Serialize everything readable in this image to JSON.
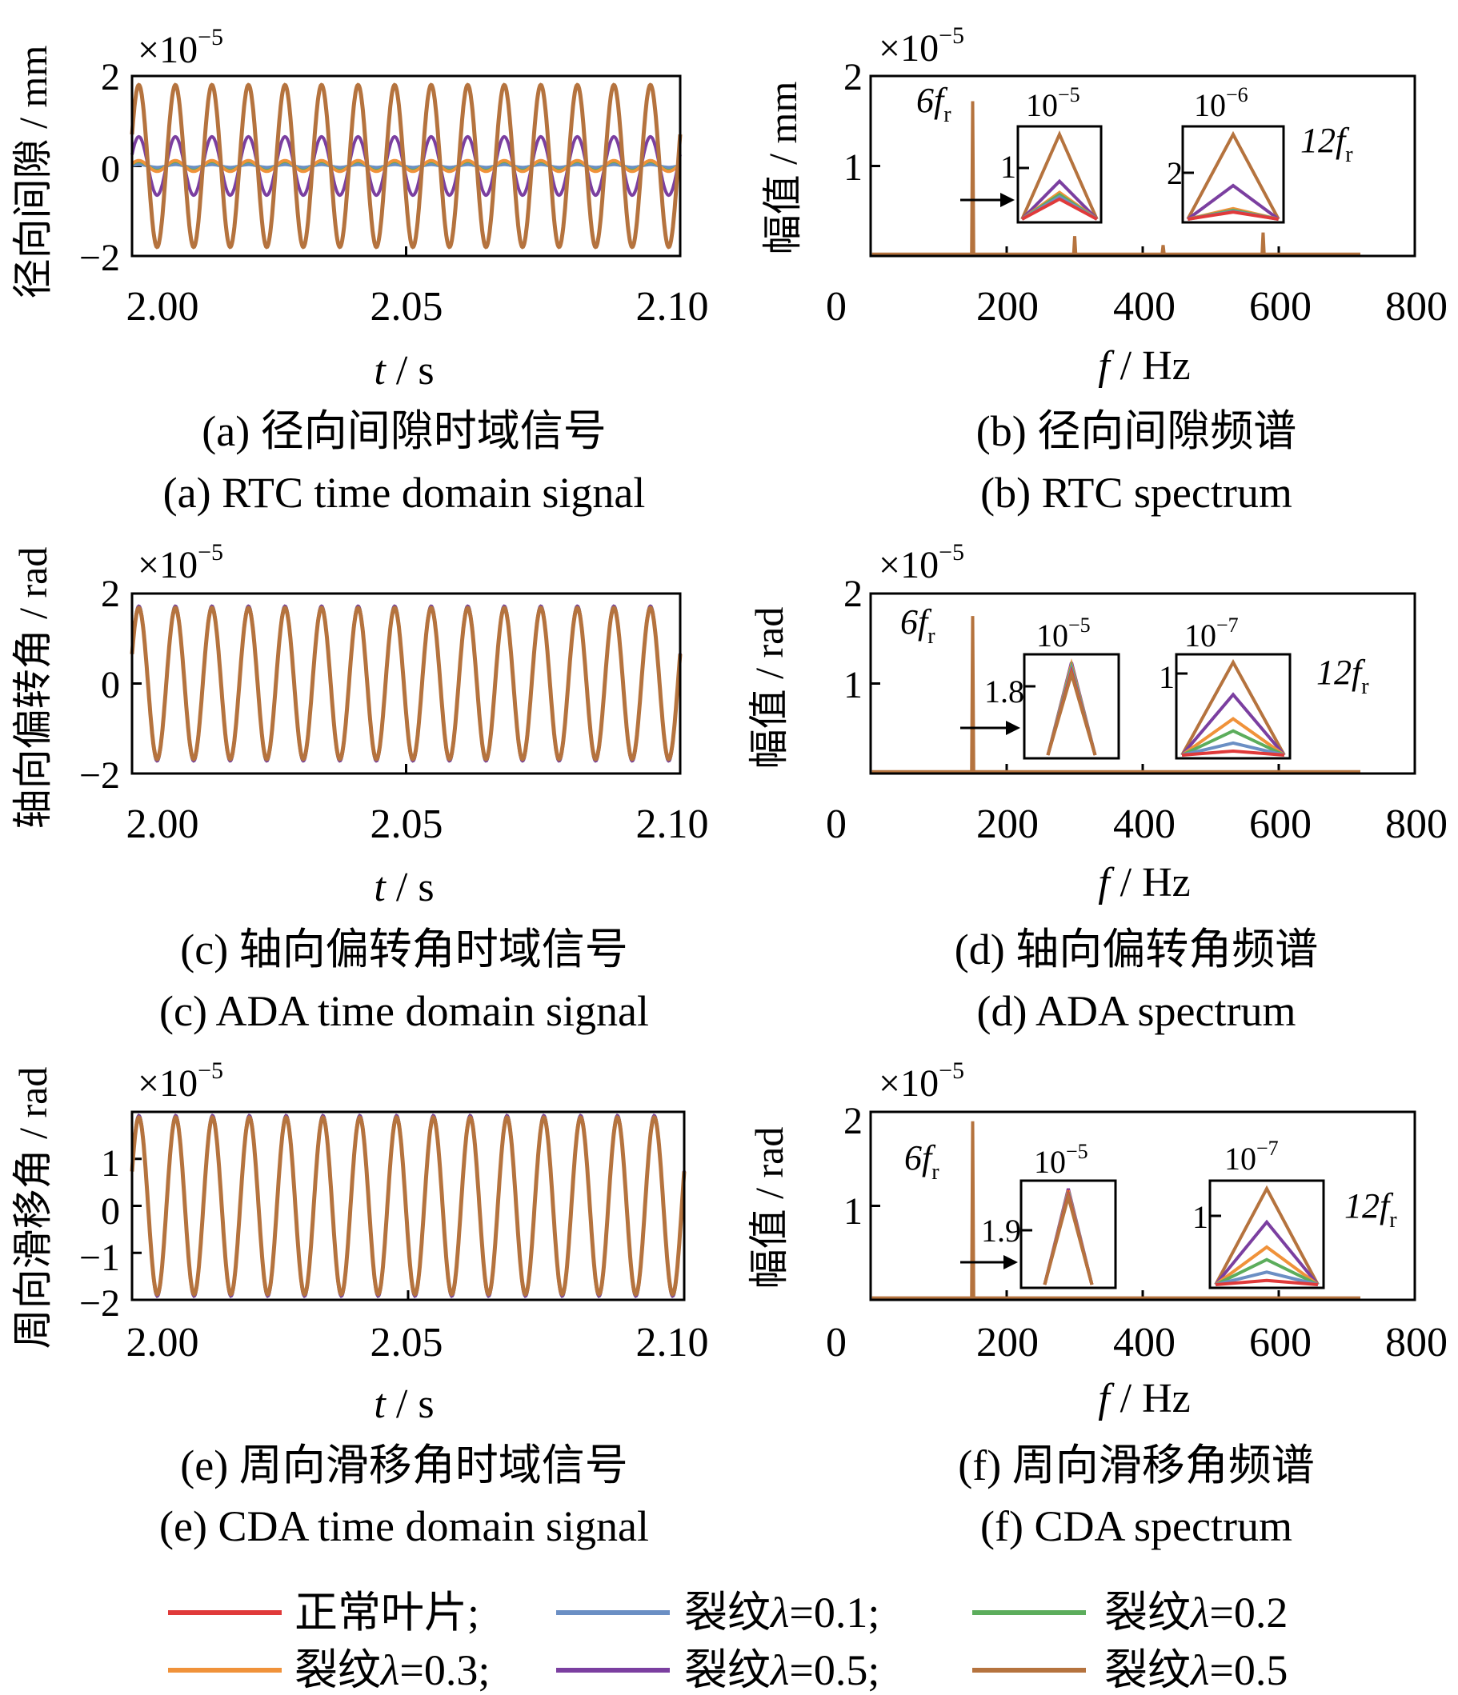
{
  "chart_data": [
    {
      "id": "a",
      "type": "line",
      "caption_cn": "(a)  径向间隙时域信号",
      "caption_en": "(a)  RTC time domain signal",
      "ylabel": "径向间隙 / mm",
      "xlabel_var": "t",
      "xlabel_unit": " / s",
      "scale_label": "×10",
      "scale_exp": "−5",
      "xlim": [
        2.0,
        2.1
      ],
      "ylim": [
        -2,
        2
      ],
      "xticks": [
        2.0,
        2.05,
        2.1
      ],
      "xtick_labels": [
        "2.00",
        "2.05",
        "2.10"
      ],
      "yticks": [
        -2,
        0,
        2
      ],
      "ytick_labels": [
        "−2",
        "0",
        "2"
      ],
      "frequency_hz": 150,
      "series_amplitude": [
        0.06,
        0.03,
        0.1,
        0.12,
        0.65,
        1.8
      ]
    },
    {
      "id": "b",
      "type": "line",
      "caption_cn": "(b)  径向间隙频谱",
      "caption_en": "(b)  RTC spectrum",
      "ylabel": "幅值 / mm",
      "xlabel_var": "f",
      "xlabel_unit": " / Hz",
      "scale_label": "×10",
      "scale_exp": "−5",
      "xlim": [
        0,
        800
      ],
      "ylim": [
        0,
        2
      ],
      "xticks": [
        0,
        200,
        400,
        600,
        800
      ],
      "xtick_labels": [
        "0",
        "200",
        "400",
        "600",
        "800"
      ],
      "yticks": [
        1,
        2
      ],
      "ytick_labels": [
        "1",
        "2"
      ],
      "peaks": [
        {
          "f": 150,
          "amp": 1.72
        },
        {
          "f": 300,
          "amp": 0.22
        },
        {
          "f": 430,
          "amp": 0.12
        },
        {
          "f": 577,
          "amp": 0.26
        }
      ],
      "peak_label_1": "6f",
      "peak_label_2": "12f",
      "peak_sub": "r",
      "inset1": {
        "scale": "10",
        "exp": "−5",
        "tick": "1",
        "series_peak": [
          0.45,
          0.5,
          0.55,
          0.6,
          0.85,
          1.9
        ]
      },
      "inset2": {
        "scale": "10",
        "exp": "−6",
        "tick": "2",
        "series_peak": [
          0.2,
          0.22,
          0.25,
          0.3,
          0.95,
          2.4
        ]
      }
    },
    {
      "id": "c",
      "type": "line",
      "caption_cn": "(c)  轴向偏转角时域信号",
      "caption_en": "(c)  ADA time domain signal",
      "ylabel": "轴向偏转角 / rad",
      "xlabel_var": "t",
      "xlabel_unit": " / s",
      "scale_label": "×10",
      "scale_exp": "−5",
      "xlim": [
        2.0,
        2.1
      ],
      "ylim": [
        -2,
        2
      ],
      "xticks": [
        2.0,
        2.05,
        2.1
      ],
      "xtick_labels": [
        "2.00",
        "2.05",
        "2.10"
      ],
      "yticks": [
        -2,
        0,
        2
      ],
      "ytick_labels": [
        "−2",
        "0",
        "2"
      ],
      "frequency_hz": 150,
      "series_amplitude": [
        1.7,
        1.7,
        1.72,
        1.7,
        1.72,
        1.68
      ]
    },
    {
      "id": "d",
      "type": "line",
      "caption_cn": "(d)  轴向偏转角频谱",
      "caption_en": "(d)  ADA spectrum",
      "ylabel": "幅值 / rad",
      "xlabel_var": "f",
      "xlabel_unit": " / Hz",
      "scale_label": "×10",
      "scale_exp": "−5",
      "xlim": [
        0,
        800
      ],
      "ylim": [
        0,
        2
      ],
      "xticks": [
        0,
        200,
        400,
        600,
        800
      ],
      "xtick_labels": [
        "0",
        "200",
        "400",
        "600",
        "800"
      ],
      "yticks": [
        1,
        2
      ],
      "ytick_labels": [
        "1",
        "2"
      ],
      "peaks": [
        {
          "f": 150,
          "amp": 1.75
        }
      ],
      "peak_label_1": "6f",
      "peak_label_2": "12f",
      "peak_sub": "r",
      "inset1": {
        "scale": "10",
        "exp": "−5",
        "tick": "1.8",
        "series_peak": [
          1.75,
          1.8,
          1.85,
          1.9,
          1.95,
          1.7
        ]
      },
      "inset2": {
        "scale": "10",
        "exp": "−7",
        "tick": "1",
        "series_peak": [
          0.05,
          0.15,
          0.3,
          0.45,
          0.75,
          1.15
        ]
      }
    },
    {
      "id": "e",
      "type": "line",
      "caption_cn": "(e)  周向滑移角时域信号",
      "caption_en": "(e)  CDA time domain signal",
      "ylabel": "周向滑移角 / rad",
      "xlabel_var": "t",
      "xlabel_unit": " / s",
      "scale_label": "×10",
      "scale_exp": "−5",
      "xlim": [
        2.0,
        2.1
      ],
      "ylim": [
        -2,
        2
      ],
      "xticks": [
        2.0,
        2.05,
        2.1
      ],
      "xtick_labels": [
        "2.00",
        "2.05",
        "2.10"
      ],
      "yticks": [
        -2,
        -1,
        0,
        1
      ],
      "ytick_labels": [
        "−2",
        "−1",
        "0",
        "1"
      ],
      "frequency_hz": 150,
      "series_amplitude": [
        1.9,
        1.9,
        1.92,
        1.9,
        1.92,
        1.88
      ]
    },
    {
      "id": "f",
      "type": "line",
      "caption_cn": "(f)  周向滑移角频谱",
      "caption_en": "(f)  CDA spectrum",
      "ylabel": "幅值 / rad",
      "xlabel_var": "f",
      "xlabel_unit": " / Hz",
      "scale_label": "×10",
      "scale_exp": "−5",
      "xlim": [
        0,
        800
      ],
      "ylim": [
        0,
        2
      ],
      "xticks": [
        0,
        200,
        400,
        600,
        800
      ],
      "xtick_labels": [
        "0",
        "200",
        "400",
        "600",
        "800"
      ],
      "yticks": [
        1,
        2
      ],
      "ytick_labels": [
        "1",
        "2"
      ],
      "peaks": [
        {
          "f": 150,
          "amp": 1.9
        }
      ],
      "peak_label_1": "6f",
      "peak_label_2": "12f",
      "peak_sub": "r",
      "inset1": {
        "scale": "10",
        "exp": "−5",
        "tick": "1.9",
        "series_peak": [
          1.85,
          1.88,
          1.9,
          1.93,
          1.97,
          1.8
        ]
      },
      "inset2": {
        "scale": "10",
        "exp": "−7",
        "tick": "1",
        "series_peak": [
          0.05,
          0.15,
          0.3,
          0.45,
          0.75,
          1.15
        ]
      }
    }
  ],
  "legend": [
    {
      "prefix": "正常叶片;",
      "lambda": "",
      "suffix": "",
      "color": "#e03a3a"
    },
    {
      "prefix": "裂纹",
      "lambda": "λ",
      "suffix": "=0.1;",
      "color": "#6b8fc4"
    },
    {
      "prefix": "裂纹",
      "lambda": "λ",
      "suffix": "=0.2",
      "color": "#5cad5c"
    },
    {
      "prefix": "裂纹",
      "lambda": "λ",
      "suffix": "=0.3;",
      "color": "#f0923a"
    },
    {
      "prefix": "裂纹",
      "lambda": "λ",
      "suffix": "=0.5;",
      "color": "#7b3fa0"
    },
    {
      "prefix": "裂纹",
      "lambda": "λ",
      "suffix": "=0.5",
      "color": "#b5733e"
    }
  ]
}
